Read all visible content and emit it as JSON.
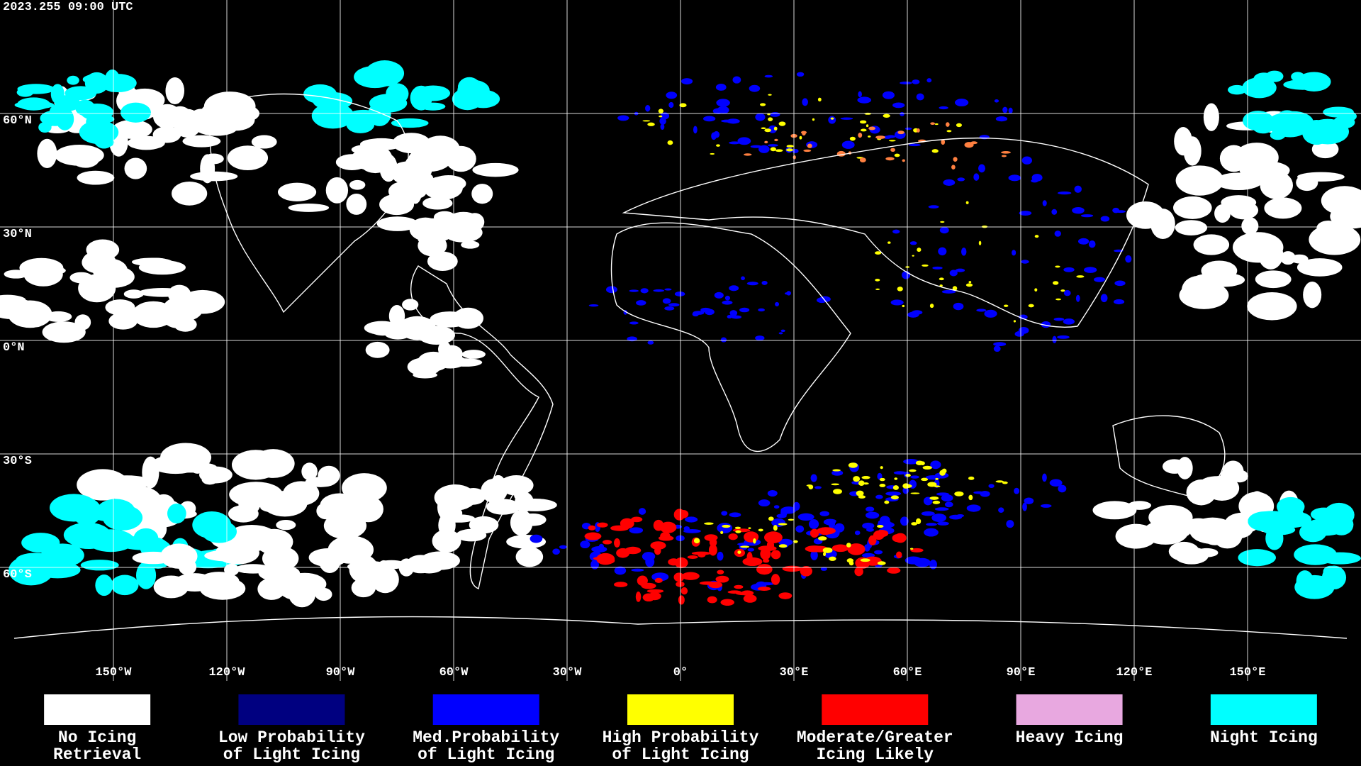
{
  "header": {
    "timestamp": "2023.255 09:00 UTC"
  },
  "map": {
    "longitude_labels": [
      "150°W",
      "120°W",
      "90°W",
      "60°W",
      "30°W",
      "0°",
      "30°E",
      "60°E",
      "90°E",
      "120°E",
      "150°E"
    ],
    "latitude_labels": [
      "60°N",
      "30°N",
      "0°N",
      "30°S",
      "60°S"
    ]
  },
  "legend": {
    "items": [
      {
        "lines": [
          "No Icing",
          "Retrieval"
        ],
        "color": "#ffffff"
      },
      {
        "lines": [
          "Low Probability",
          "of Light Icing"
        ],
        "color": "#000080"
      },
      {
        "lines": [
          "Med.Probability",
          "of Light Icing"
        ],
        "color": "#0000ff"
      },
      {
        "lines": [
          "High Probability",
          "of Light Icing"
        ],
        "color": "#ffff00"
      },
      {
        "lines": [
          "Moderate/Greater",
          "Icing Likely"
        ],
        "color": "#ff0000"
      },
      {
        "lines": [
          "Heavy Icing"
        ],
        "color": "#e8a8e0"
      },
      {
        "lines": [
          "Night Icing"
        ],
        "color": "#00ffff"
      }
    ]
  }
}
